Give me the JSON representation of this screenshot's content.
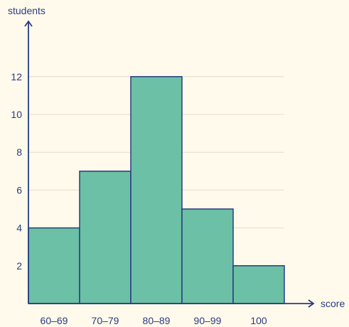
{
  "colors": {
    "background": "#fffaeb",
    "bar_fill": "#6cc0a5",
    "bar_stroke": "#283c82",
    "axis": "#283c82",
    "gridline": "#e4dcc8",
    "text": "#283c82"
  },
  "chart_data": {
    "type": "bar",
    "title": "",
    "xlabel": "score",
    "ylabel": "students",
    "categories": [
      "60–69",
      "70–79",
      "80–89",
      "90–99",
      "100"
    ],
    "values": [
      4,
      7,
      12,
      5,
      2
    ],
    "ylim": [
      0,
      12
    ],
    "yticks": [
      2,
      4,
      6,
      8,
      10,
      12
    ],
    "grid": true,
    "legend": "none"
  }
}
